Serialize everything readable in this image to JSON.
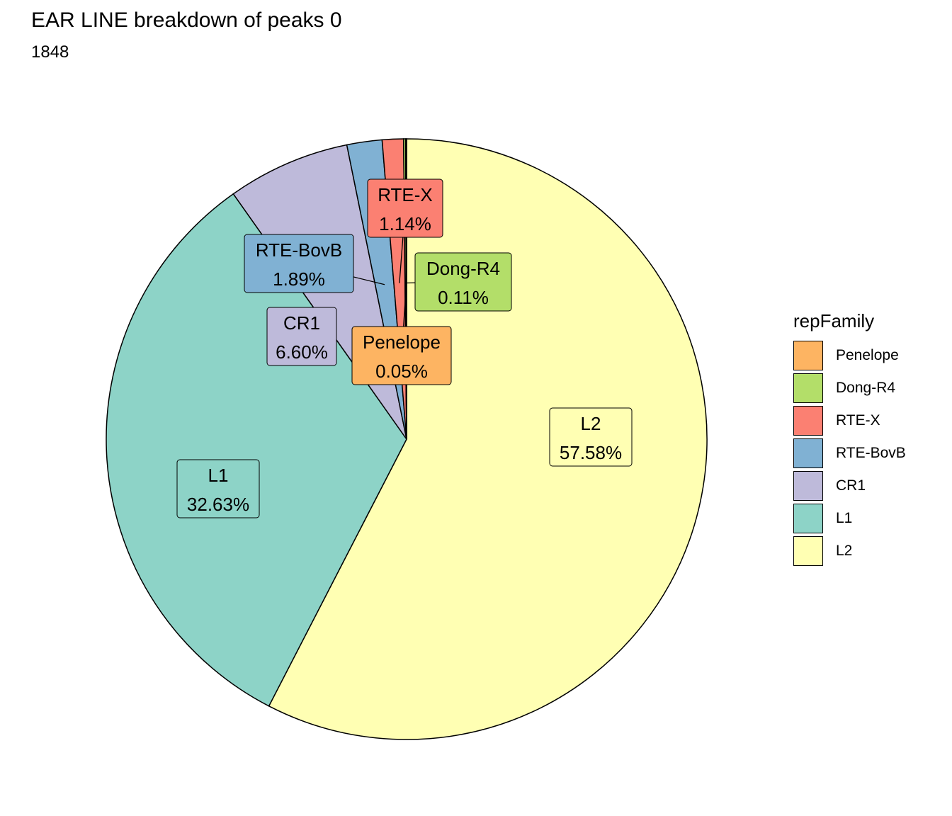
{
  "title": "EAR LINE breakdown of peaks 0",
  "subtitle": "1848",
  "chart_data": {
    "type": "pie",
    "title": "EAR LINE breakdown of peaks 0",
    "subtitle": "1848",
    "legend_title": "repFamily",
    "legend_position": "right",
    "slices": [
      {
        "label": "Penelope",
        "value": 0.05,
        "percent_label": "0.05%",
        "color": "#FDB462"
      },
      {
        "label": "Dong-R4",
        "value": 0.11,
        "percent_label": "0.11%",
        "color": "#B3DE69"
      },
      {
        "label": "RTE-X",
        "value": 1.14,
        "percent_label": "1.14%",
        "color": "#FB8072"
      },
      {
        "label": "RTE-BovB",
        "value": 1.89,
        "percent_label": "1.89%",
        "color": "#80B1D3"
      },
      {
        "label": "CR1",
        "value": 6.6,
        "percent_label": "6.60%",
        "color": "#BEBADA"
      },
      {
        "label": "L1",
        "value": 32.63,
        "percent_label": "32.63%",
        "color": "#8DD3C7"
      },
      {
        "label": "L2",
        "value": 57.58,
        "percent_label": "57.58%",
        "color": "#FFFFB3"
      }
    ]
  }
}
